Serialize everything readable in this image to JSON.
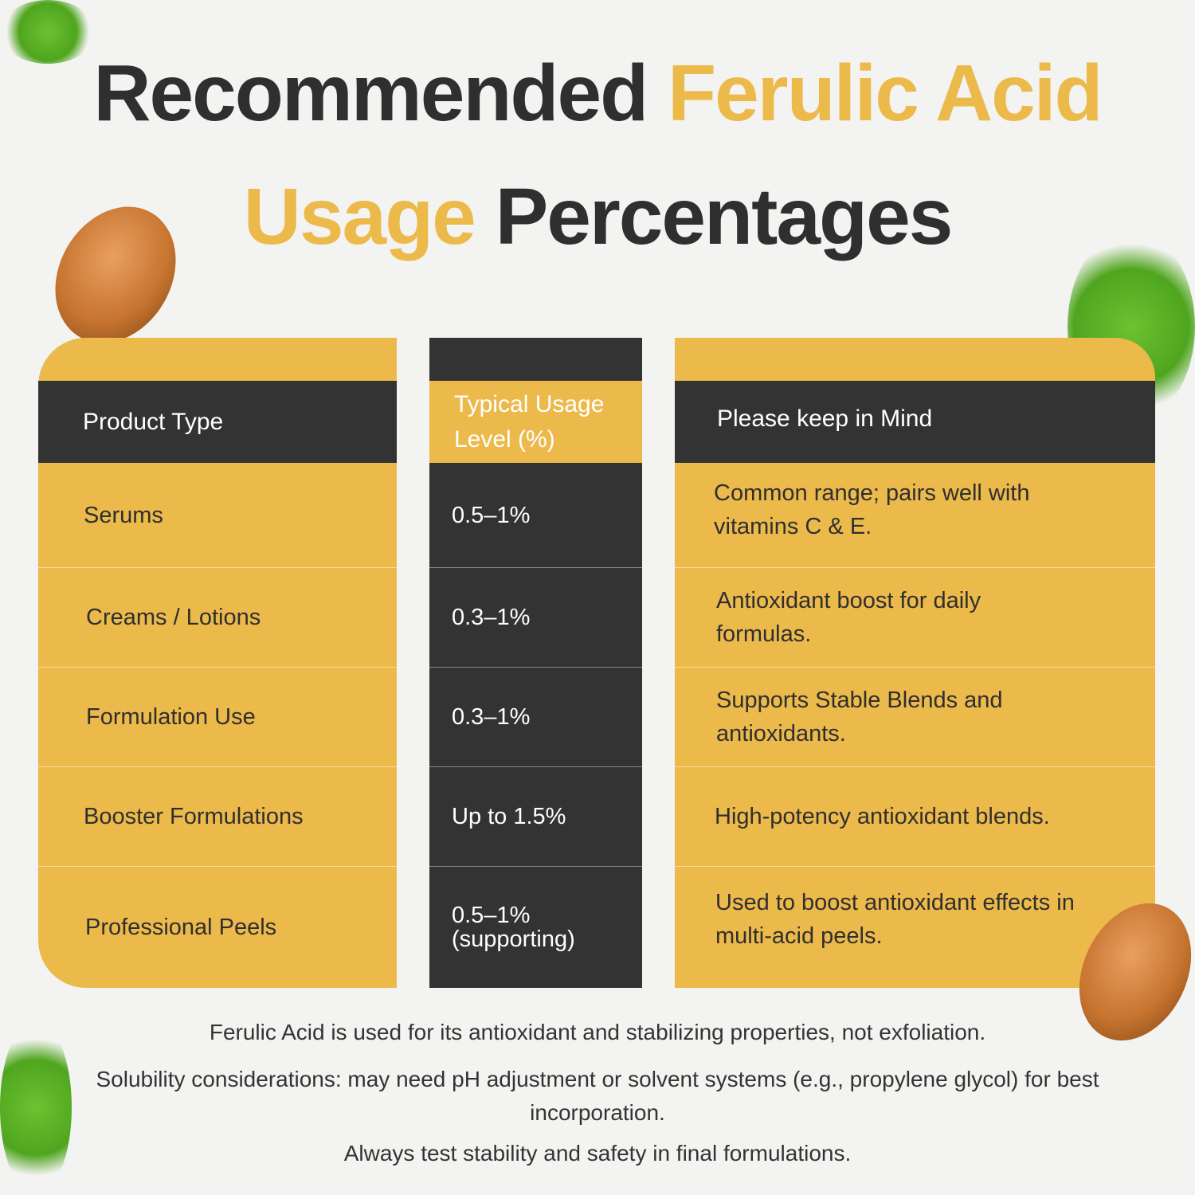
{
  "title": {
    "line1_a": "Recommended ",
    "line1_b": "Ferulic Acid",
    "line2_a": "Usage",
    "line2_b": " Percentages"
  },
  "colors": {
    "accent": "#ecb94b",
    "dark": "#333333",
    "background": "#f3f3f1"
  },
  "table": {
    "headers": [
      "Product Type",
      "Typical Usage Level (%)",
      "Please keep in Mind"
    ],
    "rows": [
      {
        "type": "Serums",
        "level": "0.5–1%",
        "note": "Common range; pairs well with vitamins C & E."
      },
      {
        "type": "Creams / Lotions",
        "level": "0.3–1%",
        "note": "Antioxidant boost for daily formulas."
      },
      {
        "type": "Formulation Use",
        "level": "0.3–1%",
        "note": "Supports Stable Blends and antioxidants."
      },
      {
        "type": "Booster Formulations",
        "level": "Up to 1.5%",
        "note": "High-potency antioxidant blends."
      },
      {
        "type": "Professional Peels",
        "level": "0.5–1% (supporting)",
        "note": "Used to boost antioxidant effects in multi-acid peels."
      }
    ]
  },
  "footer": [
    "Ferulic Acid is used for its antioxidant and stabilizing properties, not exfoliation.",
    "Solubility considerations: may need pH adjustment or solvent systems (e.g., propylene glycol) for best incorporation.",
    "Always test stability and safety in final formulations."
  ]
}
